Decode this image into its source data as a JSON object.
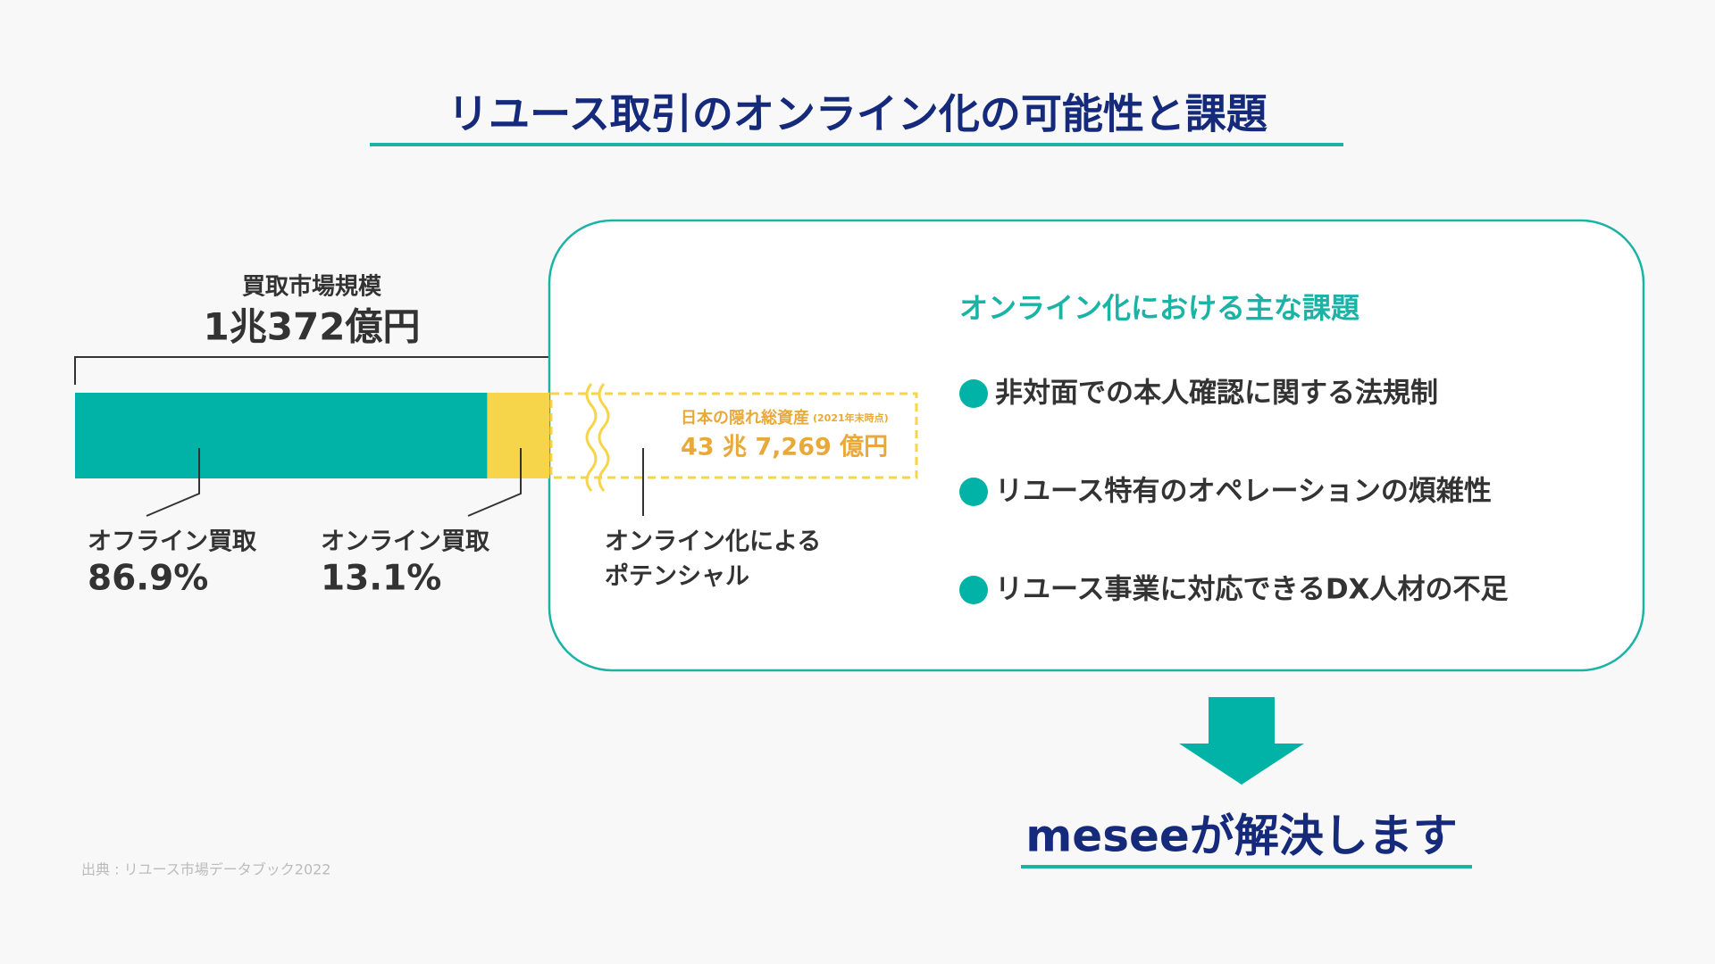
{
  "title": "リユース取引のオンライン化の可能性と課題",
  "chart_data": {
    "type": "stacked_bar",
    "title": "買取市場規模",
    "subtitle": "1兆372億円",
    "categories": [
      "買取市場規模"
    ],
    "series": [
      {
        "name": "オフライン買取",
        "color": "#00b3a6",
        "values": [
          86.9
        ],
        "value_labels": [
          "86.9%"
        ]
      },
      {
        "name": "オンライン買取",
        "color": "#f7d54a",
        "values": [
          13.1
        ],
        "value_labels": [
          "13.1%"
        ]
      }
    ]
  },
  "potential": {
    "title": "日本の隠れ総資産",
    "note": "(2021年末時点)",
    "amount": "43 兆 7,269 億円",
    "label": [
      "オンライン化による",
      "ポテンシャル"
    ]
  },
  "panel": {
    "heading": "オンライン化における主な課題",
    "items": [
      "非対面での本人確認に関する法規制",
      "リユース特有のオペレーションの煩雑性",
      "リユース事業に対応できるDX人材の不足"
    ]
  },
  "conclusion": "meseeが解決します",
  "source": "出典 : リユース市場データブック2022"
}
